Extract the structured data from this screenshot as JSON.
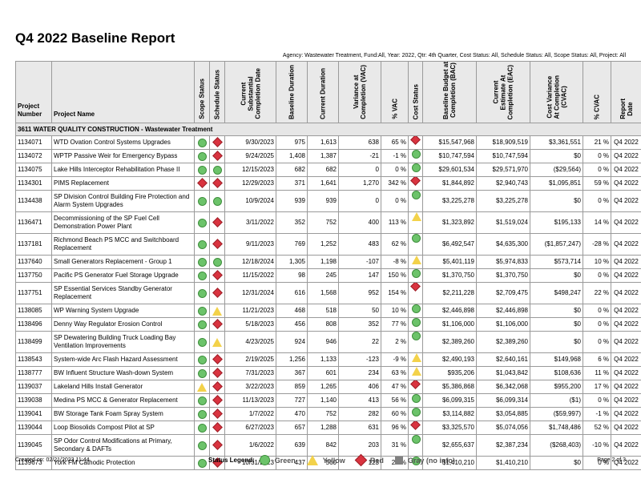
{
  "report": {
    "title": "Q4 2022 Baseline Report",
    "filter": "Agency: Wastewater Treatment, Fund:All, Year: 2022, Qtr: 4th Quarter, Cost Status: All, Schedule Status: All, Scope Status: All, Project: All"
  },
  "columns": {
    "project_number": "Project Number",
    "project_name": "Project Name",
    "scope_status": "Scope Status",
    "schedule_status": "Schedule Status",
    "completion_date": [
      "Current",
      "Substantial",
      "Completion Date"
    ],
    "baseline_duration": "Baseline Duration",
    "current_duration": "Current Duration",
    "vac": [
      "Variance at",
      "Completion (VAC)"
    ],
    "pct_vac": "% VAC",
    "cost_status": "Cost Status",
    "bac": [
      "Baseline Budget at",
      "Completion (BAC)"
    ],
    "eac": [
      "Current",
      "Estimate At",
      "Completion (EAC)"
    ],
    "cvac": [
      "Cost Variance",
      "At Completion",
      "(CVAC)"
    ],
    "pct_cvac": "% CVAC",
    "report_date": [
      "Report",
      "Date"
    ]
  },
  "group": "3611 WATER QUALITY CONSTRUCTION - Wastewater Treatment",
  "rows": [
    {
      "num": "1134071",
      "name": "WTD Ovation Control Systems Upgrades",
      "scope": "green",
      "sched": "red",
      "date": "9/30/2023",
      "bd": "975",
      "cd": "1,613",
      "vac": "638",
      "pvac": "65 %",
      "cost": "red",
      "bac": "$15,547,968",
      "eac": "$18,909,519",
      "cvac": "$3,361,551",
      "pcvac": "21 %",
      "rd": "Q4 2022",
      "tall": false
    },
    {
      "num": "1134072",
      "name": "WPTP Passive Weir for Emergency Bypass",
      "scope": "green",
      "sched": "red",
      "date": "9/24/2025",
      "bd": "1,408",
      "cd": "1,387",
      "vac": "-21",
      "pvac": "-1 %",
      "cost": "green",
      "bac": "$10,747,594",
      "eac": "$10,747,594",
      "cvac": "$0",
      "pcvac": "0 %",
      "rd": "Q4 2022",
      "tall": false
    },
    {
      "num": "1134075",
      "name": "Lake Hills Interceptor Rehabilitation Phase II",
      "scope": "green",
      "sched": "green",
      "date": "12/15/2023",
      "bd": "682",
      "cd": "682",
      "vac": "0",
      "pvac": "0 %",
      "cost": "green",
      "bac": "$29,601,534",
      "eac": "$29,571,970",
      "cvac": "($29,564)",
      "pcvac": "0 %",
      "rd": "Q4 2022",
      "tall": false
    },
    {
      "num": "1134301",
      "name": "PIMS Replacement",
      "scope": "red",
      "sched": "red",
      "date": "12/29/2023",
      "bd": "371",
      "cd": "1,641",
      "vac": "1,270",
      "pvac": "342 %",
      "cost": "red",
      "bac": "$1,844,892",
      "eac": "$2,940,743",
      "cvac": "$1,095,851",
      "pcvac": "59 %",
      "rd": "Q4 2022",
      "tall": false
    },
    {
      "num": "1134438",
      "name": "SP Division Control Building Fire Protection and Alarm System Upgrades",
      "scope": "green",
      "sched": "green",
      "date": "10/9/2024",
      "bd": "939",
      "cd": "939",
      "vac": "0",
      "pvac": "0 %",
      "cost": "green",
      "bac": "$3,225,278",
      "eac": "$3,225,278",
      "cvac": "$0",
      "pcvac": "0 %",
      "rd": "Q4 2022",
      "tall": true
    },
    {
      "num": "1136471",
      "name": "Decommissioning of the SP Fuel Cell Demonstration Power Plant",
      "scope": "green",
      "sched": "red",
      "date": "3/11/2022",
      "bd": "352",
      "cd": "752",
      "vac": "400",
      "pvac": "113 %",
      "cost": "yellow",
      "bac": "$1,323,892",
      "eac": "$1,519,024",
      "cvac": "$195,133",
      "pcvac": "14 %",
      "rd": "Q4 2022",
      "tall": true
    },
    {
      "num": "1137181",
      "name": "Richmond Beach PS MCC and Switchboard Replacement",
      "scope": "green",
      "sched": "red",
      "date": "9/11/2023",
      "bd": "769",
      "cd": "1,252",
      "vac": "483",
      "pvac": "62 %",
      "cost": "green",
      "bac": "$6,492,547",
      "eac": "$4,635,300",
      "cvac": "($1,857,247)",
      "pcvac": "-28 %",
      "rd": "Q4 2022",
      "tall": true
    },
    {
      "num": "1137640",
      "name": "Small Generators Replacement - Group 1",
      "scope": "green",
      "sched": "green",
      "date": "12/18/2024",
      "bd": "1,305",
      "cd": "1,198",
      "vac": "-107",
      "pvac": "-8 %",
      "cost": "yellow",
      "bac": "$5,401,119",
      "eac": "$5,974,833",
      "cvac": "$573,714",
      "pcvac": "10 %",
      "rd": "Q4 2022",
      "tall": false
    },
    {
      "num": "1137750",
      "name": "Pacific PS Generator Fuel Storage Upgrade",
      "scope": "green",
      "sched": "red",
      "date": "11/15/2022",
      "bd": "98",
      "cd": "245",
      "vac": "147",
      "pvac": "150 %",
      "cost": "green",
      "bac": "$1,370,750",
      "eac": "$1,370,750",
      "cvac": "$0",
      "pcvac": "0 %",
      "rd": "Q4 2022",
      "tall": false
    },
    {
      "num": "1137751",
      "name": "SP Essential Services Standby Generator Replacement",
      "scope": "green",
      "sched": "red",
      "date": "12/31/2024",
      "bd": "616",
      "cd": "1,568",
      "vac": "952",
      "pvac": "154 %",
      "cost": "red",
      "bac": "$2,211,228",
      "eac": "$2,709,475",
      "cvac": "$498,247",
      "pcvac": "22 %",
      "rd": "Q4 2022",
      "tall": true
    },
    {
      "num": "1138085",
      "name": "WP Warning System Upgrade",
      "scope": "green",
      "sched": "yellow",
      "date": "11/21/2023",
      "bd": "468",
      "cd": "518",
      "vac": "50",
      "pvac": "10 %",
      "cost": "green",
      "bac": "$2,446,898",
      "eac": "$2,446,898",
      "cvac": "$0",
      "pcvac": "0 %",
      "rd": "Q4 2022",
      "tall": false
    },
    {
      "num": "1138496",
      "name": "Denny Way Regulator Erosion Control",
      "scope": "green",
      "sched": "red",
      "date": "5/18/2023",
      "bd": "456",
      "cd": "808",
      "vac": "352",
      "pvac": "77 %",
      "cost": "green",
      "bac": "$1,106,000",
      "eac": "$1,106,000",
      "cvac": "$0",
      "pcvac": "0 %",
      "rd": "Q4 2022",
      "tall": false
    },
    {
      "num": "1138499",
      "name": "SP Dewatering Building Truck Loading Bay Ventilation Improvements",
      "scope": "green",
      "sched": "yellow",
      "date": "4/23/2025",
      "bd": "924",
      "cd": "946",
      "vac": "22",
      "pvac": "2 %",
      "cost": "green",
      "bac": "$2,389,260",
      "eac": "$2,389,260",
      "cvac": "$0",
      "pcvac": "0 %",
      "rd": "Q4 2022",
      "tall": true
    },
    {
      "num": "1138543",
      "name": "System-wide Arc Flash Hazard Assessment",
      "scope": "green",
      "sched": "red",
      "date": "2/19/2025",
      "bd": "1,256",
      "cd": "1,133",
      "vac": "-123",
      "pvac": "-9 %",
      "cost": "yellow",
      "bac": "$2,490,193",
      "eac": "$2,640,161",
      "cvac": "$149,968",
      "pcvac": "6 %",
      "rd": "Q4 2022",
      "tall": false
    },
    {
      "num": "1138777",
      "name": "BW Influent Structure Wash-down System",
      "scope": "green",
      "sched": "red",
      "date": "7/31/2023",
      "bd": "367",
      "cd": "601",
      "vac": "234",
      "pvac": "63 %",
      "cost": "yellow",
      "bac": "$935,206",
      "eac": "$1,043,842",
      "cvac": "$108,636",
      "pcvac": "11 %",
      "rd": "Q4 2022",
      "tall": false
    },
    {
      "num": "1139037",
      "name": "Lakeland Hills Install Generator",
      "scope": "yellow",
      "sched": "red",
      "date": "3/22/2023",
      "bd": "859",
      "cd": "1,265",
      "vac": "406",
      "pvac": "47 %",
      "cost": "red",
      "bac": "$5,386,868",
      "eac": "$6,342,068",
      "cvac": "$955,200",
      "pcvac": "17 %",
      "rd": "Q4 2022",
      "tall": false
    },
    {
      "num": "1139038",
      "name": "Medina PS MCC & Generator Replacement",
      "scope": "green",
      "sched": "red",
      "date": "11/13/2023",
      "bd": "727",
      "cd": "1,140",
      "vac": "413",
      "pvac": "56 %",
      "cost": "green",
      "bac": "$6,099,315",
      "eac": "$6,099,314",
      "cvac": "($1)",
      "pcvac": "0 %",
      "rd": "Q4 2022",
      "tall": false
    },
    {
      "num": "1139041",
      "name": "BW Storage Tank Foam Spray System",
      "scope": "green",
      "sched": "red",
      "date": "1/7/2022",
      "bd": "470",
      "cd": "752",
      "vac": "282",
      "pvac": "60 %",
      "cost": "green",
      "bac": "$3,114,882",
      "eac": "$3,054,885",
      "cvac": "($59,997)",
      "pcvac": "-1 %",
      "rd": "Q4 2022",
      "tall": false
    },
    {
      "num": "1139044",
      "name": "Loop Biosolids Compost Pilot at SP",
      "scope": "green",
      "sched": "red",
      "date": "6/27/2023",
      "bd": "657",
      "cd": "1,288",
      "vac": "631",
      "pvac": "96 %",
      "cost": "red",
      "bac": "$3,325,570",
      "eac": "$5,074,056",
      "cvac": "$1,748,486",
      "pcvac": "52 %",
      "rd": "Q4 2022",
      "tall": false
    },
    {
      "num": "1139045",
      "name": "SP Odor Control Modifications at Primary, Secondary & DAFTs",
      "scope": "green",
      "sched": "red",
      "date": "1/6/2022",
      "bd": "639",
      "cd": "842",
      "vac": "203",
      "pvac": "31 %",
      "cost": "green",
      "bac": "$2,655,637",
      "eac": "$2,387,234",
      "cvac": "($268,403)",
      "pcvac": "-10 %",
      "rd": "Q4 2022",
      "tall": true
    },
    {
      "num": "1139673",
      "name": "York FM Cathodic Protection",
      "scope": "green",
      "sched": "red",
      "date": "10/31/2023",
      "bd": "437",
      "cd": "560",
      "vac": "123",
      "pvac": "28 %",
      "cost": "green",
      "bac": "$1,410,210",
      "eac": "$1,410,210",
      "cvac": "$0",
      "pcvac": "0 %",
      "rd": "Q4 2022",
      "tall": false
    }
  ],
  "footer": {
    "created": "Created on: 02/21/2023 11:44",
    "legend_title": "Status Legend:",
    "legend": [
      {
        "shape": "green",
        "label": "Green"
      },
      {
        "shape": "yellow",
        "label": "Yellow"
      },
      {
        "shape": "red",
        "label": "Red"
      },
      {
        "shape": "gray",
        "label": "Gray (no info)"
      }
    ],
    "page": "Page 2 of 3"
  },
  "colors": {
    "green": "#6cc36a",
    "yellow": "#f3d24a",
    "red": "#d9333f",
    "gray": "#808080",
    "header_bg": "#e9e9e9"
  }
}
